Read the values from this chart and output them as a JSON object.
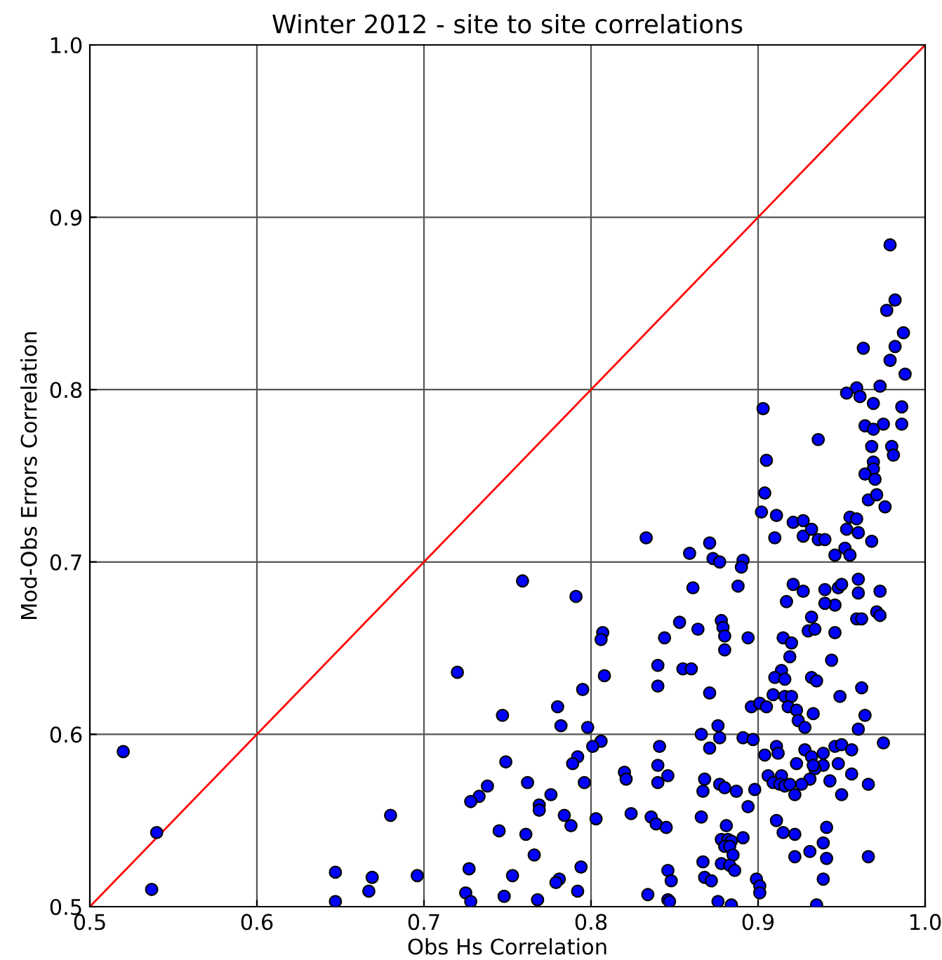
{
  "chart_data": {
    "type": "scatter",
    "title": "Winter 2012 - site to site correlations",
    "xlabel": "Obs Hs Correlation",
    "ylabel": "Mod-Obs Errors Correlation",
    "xlim": [
      0.5,
      1.0
    ],
    "ylim": [
      0.5,
      1.0
    ],
    "xticks": [
      0.5,
      0.6,
      0.7,
      0.8,
      0.9,
      {
        "value": 1,
        "label": "1.0"
      }
    ],
    "yticks": [
      0.5,
      0.6,
      0.7,
      0.8,
      0.9,
      {
        "value": 1,
        "label": "1.0"
      }
    ],
    "grid": true,
    "series": [
      {
        "marker": "circle",
        "color": "#0000ff",
        "x": [
          0.52,
          0.54,
          0.537,
          0.647,
          0.647,
          0.669,
          0.667,
          0.68,
          0.696,
          0.72,
          0.738,
          0.733,
          0.728,
          0.727,
          0.725,
          0.728,
          0.833,
          0.859,
          0.871,
          0.873,
          0.759,
          0.791,
          0.861,
          0.853,
          0.864,
          0.844,
          0.807,
          0.806,
          0.84,
          0.855,
          0.86,
          0.808,
          0.84,
          0.871,
          0.795,
          0.78,
          0.747,
          0.782,
          0.798,
          0.866,
          0.806,
          0.801,
          0.841,
          0.871,
          0.749,
          0.792,
          0.789,
          0.84,
          0.82,
          0.821,
          0.846,
          0.84,
          0.868,
          0.762,
          0.796,
          0.867,
          0.776,
          0.769,
          0.769,
          0.784,
          0.788,
          0.803,
          0.824,
          0.836,
          0.839,
          0.845,
          0.866,
          0.745,
          0.761,
          0.766,
          0.794,
          0.846,
          0.848,
          0.867,
          0.868,
          0.872,
          0.753,
          0.781,
          0.779,
          0.792,
          0.748,
          0.768,
          0.834,
          0.846,
          0.847,
          0.904,
          0.902,
          0.911,
          0.91,
          0.921,
          0.927,
          0.927,
          0.932,
          0.936,
          0.94,
          0.966,
          0.971,
          0.976,
          0.955,
          0.959,
          0.953,
          0.96,
          0.968,
          0.952,
          0.946,
          0.955,
          0.877,
          0.891,
          0.89,
          0.888,
          0.878,
          0.879,
          0.88,
          0.88,
          0.894,
          0.896,
          0.901,
          0.905,
          0.876,
          0.877,
          0.891,
          0.897,
          0.921,
          0.927,
          0.917,
          0.94,
          0.948,
          0.95,
          0.946,
          0.94,
          0.96,
          0.96,
          0.973,
          0.959,
          0.962,
          0.971,
          0.973,
          0.932,
          0.93,
          0.934,
          0.946,
          0.915,
          0.92,
          0.919,
          0.944,
          0.914,
          0.91,
          0.916,
          0.932,
          0.935,
          0.909,
          0.916,
          0.92,
          0.918,
          0.923,
          0.924,
          0.928,
          0.933,
          0.949,
          0.962,
          0.964,
          0.96,
          0.904,
          0.911,
          0.912,
          0.928,
          0.932,
          0.939,
          0.939,
          0.934,
          0.933,
          0.923,
          0.914,
          0.931,
          0.946,
          0.95,
          0.956,
          0.948,
          0.975,
          0.906,
          0.909,
          0.913,
          0.916,
          0.919,
          0.922,
          0.926,
          0.943,
          0.956,
          0.966,
          0.95,
          0.894,
          0.898,
          0.911,
          0.915,
          0.922,
          0.941,
          0.939,
          0.931,
          0.922,
          0.941,
          0.966,
          0.877,
          0.88,
          0.887,
          0.881,
          0.878,
          0.882,
          0.884,
          0.88,
          0.883,
          0.885,
          0.891,
          0.878,
          0.883,
          0.886,
          0.876,
          0.884,
          0.899,
          0.901,
          0.901,
          0.939,
          0.935,
          0.979,
          0.982,
          0.977,
          0.987,
          0.982,
          0.979,
          0.988,
          0.963,
          0.959,
          0.953,
          0.961,
          0.973,
          0.969,
          0.986,
          0.964,
          0.969,
          0.975,
          0.986,
          0.903,
          0.905,
          0.936,
          0.968,
          0.98,
          0.981,
          0.969,
          0.969,
          0.964,
          0.97
        ],
        "values": [
          0.59,
          0.543,
          0.51,
          0.52,
          0.503,
          0.517,
          0.509,
          0.553,
          0.518,
          0.636,
          0.57,
          0.564,
          0.561,
          0.522,
          0.508,
          0.503,
          0.714,
          0.705,
          0.711,
          0.702,
          0.689,
          0.68,
          0.685,
          0.665,
          0.661,
          0.656,
          0.659,
          0.655,
          0.64,
          0.638,
          0.638,
          0.634,
          0.628,
          0.624,
          0.626,
          0.616,
          0.611,
          0.605,
          0.604,
          0.6,
          0.596,
          0.593,
          0.593,
          0.592,
          0.584,
          0.587,
          0.583,
          0.582,
          0.578,
          0.574,
          0.576,
          0.572,
          0.574,
          0.572,
          0.572,
          0.567,
          0.565,
          0.559,
          0.556,
          0.553,
          0.547,
          0.551,
          0.554,
          0.552,
          0.548,
          0.546,
          0.552,
          0.544,
          0.542,
          0.53,
          0.523,
          0.521,
          0.515,
          0.526,
          0.517,
          0.515,
          0.518,
          0.516,
          0.514,
          0.509,
          0.506,
          0.504,
          0.507,
          0.504,
          0.503,
          0.74,
          0.729,
          0.727,
          0.714,
          0.723,
          0.724,
          0.715,
          0.719,
          0.713,
          0.713,
          0.736,
          0.739,
          0.732,
          0.726,
          0.725,
          0.719,
          0.717,
          0.712,
          0.708,
          0.704,
          0.704,
          0.7,
          0.701,
          0.697,
          0.686,
          0.666,
          0.662,
          0.657,
          0.649,
          0.656,
          0.616,
          0.618,
          0.616,
          0.605,
          0.598,
          0.598,
          0.597,
          0.687,
          0.683,
          0.677,
          0.684,
          0.685,
          0.687,
          0.675,
          0.676,
          0.69,
          0.682,
          0.683,
          0.667,
          0.667,
          0.671,
          0.669,
          0.668,
          0.66,
          0.661,
          0.659,
          0.656,
          0.653,
          0.645,
          0.643,
          0.637,
          0.633,
          0.632,
          0.633,
          0.631,
          0.623,
          0.622,
          0.622,
          0.616,
          0.614,
          0.608,
          0.604,
          0.612,
          0.622,
          0.627,
          0.611,
          0.603,
          0.588,
          0.593,
          0.589,
          0.591,
          0.587,
          0.589,
          0.582,
          0.58,
          0.582,
          0.583,
          0.576,
          0.574,
          0.593,
          0.594,
          0.591,
          0.583,
          0.595,
          0.576,
          0.572,
          0.571,
          0.57,
          0.571,
          0.565,
          0.571,
          0.573,
          0.577,
          0.571,
          0.565,
          0.558,
          0.568,
          0.55,
          0.543,
          0.542,
          0.546,
          0.537,
          0.532,
          0.529,
          0.528,
          0.529,
          0.571,
          0.569,
          0.567,
          0.547,
          0.539,
          0.539,
          0.538,
          0.535,
          0.535,
          0.53,
          0.54,
          0.525,
          0.524,
          0.521,
          0.503,
          0.501,
          0.516,
          0.512,
          0.508,
          0.516,
          0.501,
          0.884,
          0.852,
          0.846,
          0.833,
          0.825,
          0.817,
          0.809,
          0.824,
          0.801,
          0.798,
          0.796,
          0.802,
          0.792,
          0.79,
          0.779,
          0.777,
          0.78,
          0.78,
          0.789,
          0.759,
          0.771,
          0.767,
          0.767,
          0.762,
          0.758,
          0.754,
          0.751,
          0.748
        ]
      },
      {
        "type": "line",
        "color": "#ff0000",
        "x": [
          0.5,
          1.0
        ],
        "values": [
          0.5,
          1.0
        ]
      }
    ]
  }
}
